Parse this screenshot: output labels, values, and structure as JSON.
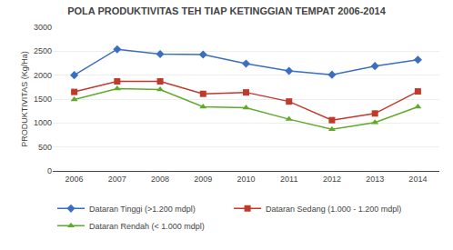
{
  "chart_data": {
    "type": "line",
    "title": "POLA PRODUKTIVITAS TEH TIAP KETINGGIAN TEMPAT 2006-2014",
    "y_label": "PRODUKTIVITAS (Kg/Ha)",
    "x": [
      2006,
      2007,
      2008,
      2009,
      2010,
      2011,
      2012,
      2013,
      2014
    ],
    "series": [
      {
        "name": "Dataran Tinggi (>1.200 mdpl)",
        "color": "#3A6EBF",
        "marker": "diamond",
        "values": [
          2000,
          2540,
          2440,
          2430,
          2240,
          2090,
          2010,
          2190,
          2320
        ]
      },
      {
        "name": "Dataran Sedang (1.000 - 1.200 mdpl)",
        "color": "#C0392B",
        "marker": "square",
        "values": [
          1650,
          1870,
          1870,
          1610,
          1640,
          1450,
          1060,
          1200,
          1660
        ]
      },
      {
        "name": "Dataran Rendah (< 1.000 mdpl)",
        "color": "#5DAB29",
        "marker": "triangle-up",
        "values": [
          1490,
          1720,
          1700,
          1340,
          1320,
          1080,
          870,
          1010,
          1340
        ]
      }
    ],
    "xlim": [
      2005.5,
      2014.5
    ],
    "xticks": [
      2006,
      2007,
      2008,
      2009,
      2010,
      2011,
      2012,
      2013,
      2014
    ],
    "ylim": [
      0,
      3000
    ],
    "yticks": [
      0,
      500,
      1000,
      1500,
      2000,
      2500,
      3000
    ],
    "grid": true
  }
}
